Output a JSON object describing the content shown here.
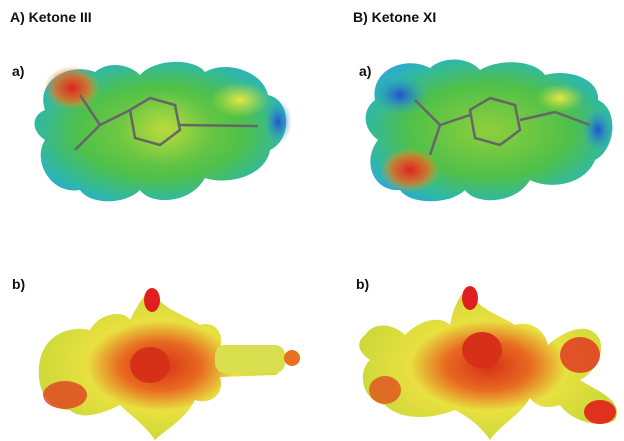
{
  "panels": [
    {
      "title": "A) Ketone III",
      "views": [
        {
          "label": "a)"
        },
        {
          "label": "b)"
        }
      ]
    },
    {
      "title": "B) Ketone XI",
      "views": [
        {
          "label": "a)"
        },
        {
          "label": "b)"
        }
      ]
    }
  ]
}
